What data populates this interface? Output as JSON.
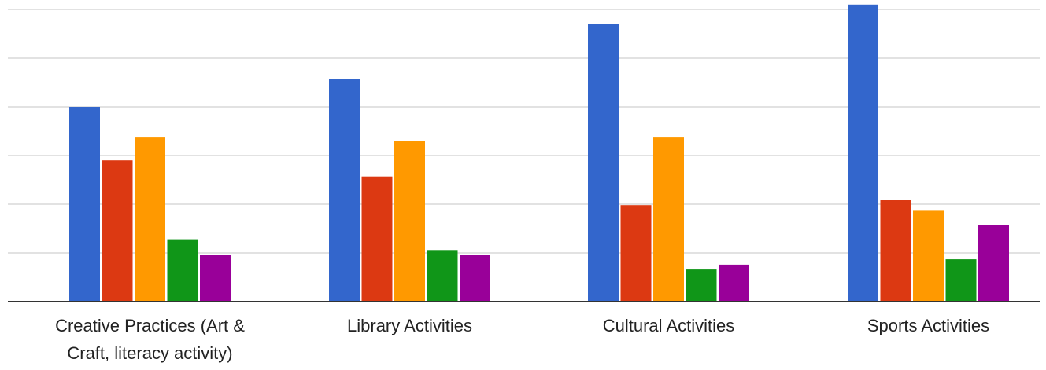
{
  "chart_data": {
    "type": "bar",
    "title": "",
    "xlabel": "",
    "ylabel": "",
    "categories": [
      [
        "Creative Practices (Art &",
        "Craft, literacy activity)"
      ],
      [
        "Library Activities"
      ],
      [
        "Cultural Activities"
      ],
      [
        "Sports Activities"
      ]
    ],
    "ylim": [
      0,
      6
    ],
    "grid": true,
    "legend": "none",
    "series": [
      {
        "color": "#3366cc",
        "values": [
          4.0,
          4.58,
          5.7,
          6.1
        ]
      },
      {
        "color": "#dc3912",
        "values": [
          2.9,
          2.57,
          1.98,
          2.09
        ]
      },
      {
        "color": "#ff9900",
        "values": [
          3.37,
          3.3,
          3.37,
          1.88
        ]
      },
      {
        "color": "#109618",
        "values": [
          1.28,
          1.06,
          0.66,
          0.87
        ]
      },
      {
        "color": "#990099",
        "values": [
          0.96,
          0.96,
          0.76,
          1.58
        ]
      }
    ]
  }
}
